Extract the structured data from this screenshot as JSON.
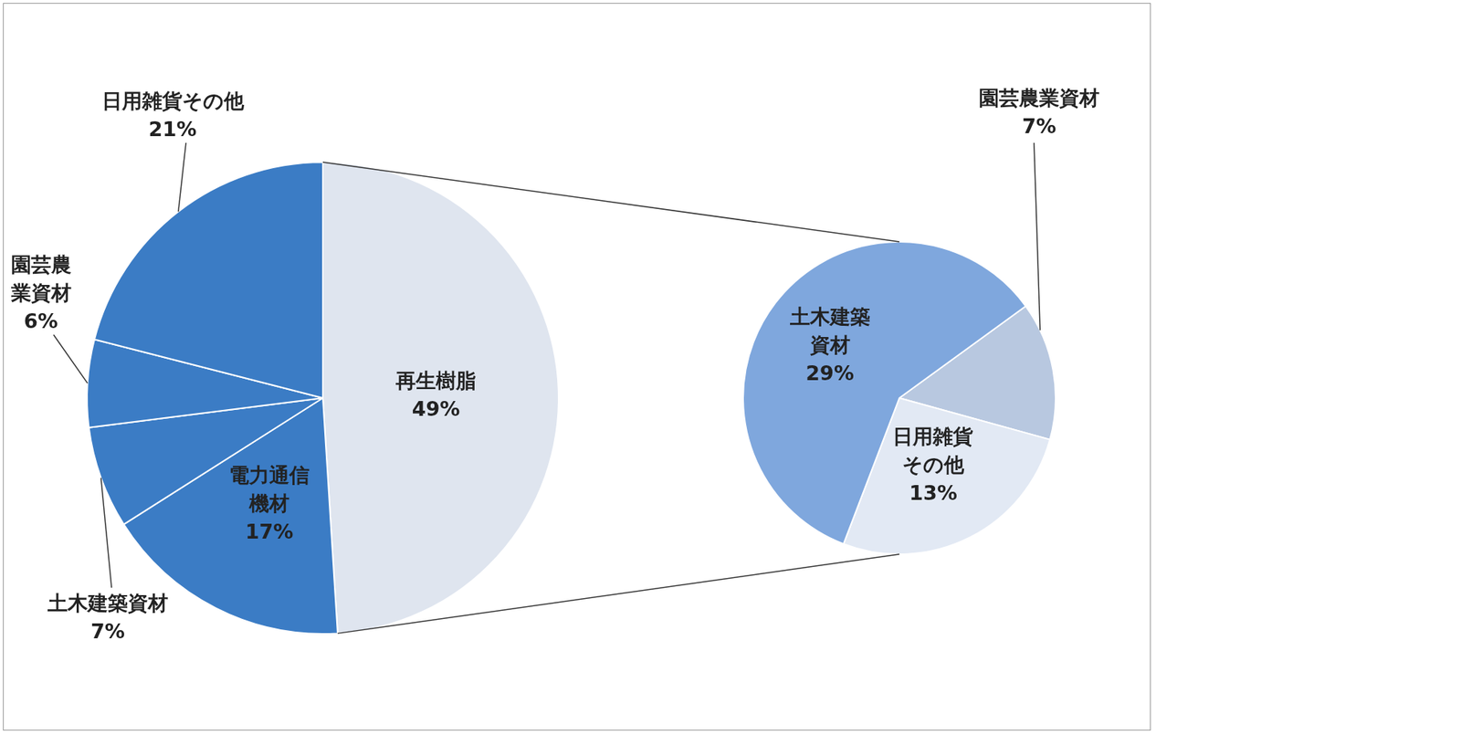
{
  "chart_data": [
    {
      "type": "pie",
      "categories": [
        "再生樹脂",
        "電力通信機材",
        "土木建築資材",
        "園芸農業資材",
        "日用雑貨その他"
      ],
      "values": [
        49,
        17,
        7,
        6,
        21
      ],
      "value_labels": [
        "49%",
        "17%",
        "7%",
        "6%",
        "21%"
      ],
      "colors": [
        "#dfe5ef",
        "#3b7cc5",
        "#3b7cc5",
        "#3b7cc5",
        "#3b7cc5"
      ],
      "data_labels": true
    },
    {
      "type": "pie",
      "categories": [
        "園芸農業資材",
        "日用雑貨その他",
        "土木建築資材"
      ],
      "values": [
        7,
        13,
        29
      ],
      "value_labels": [
        "7%",
        "13%",
        "29%"
      ],
      "colors": [
        "#b8c8e0",
        "#e2e9f4",
        "#7fa7dd"
      ],
      "data_labels": true
    }
  ]
}
